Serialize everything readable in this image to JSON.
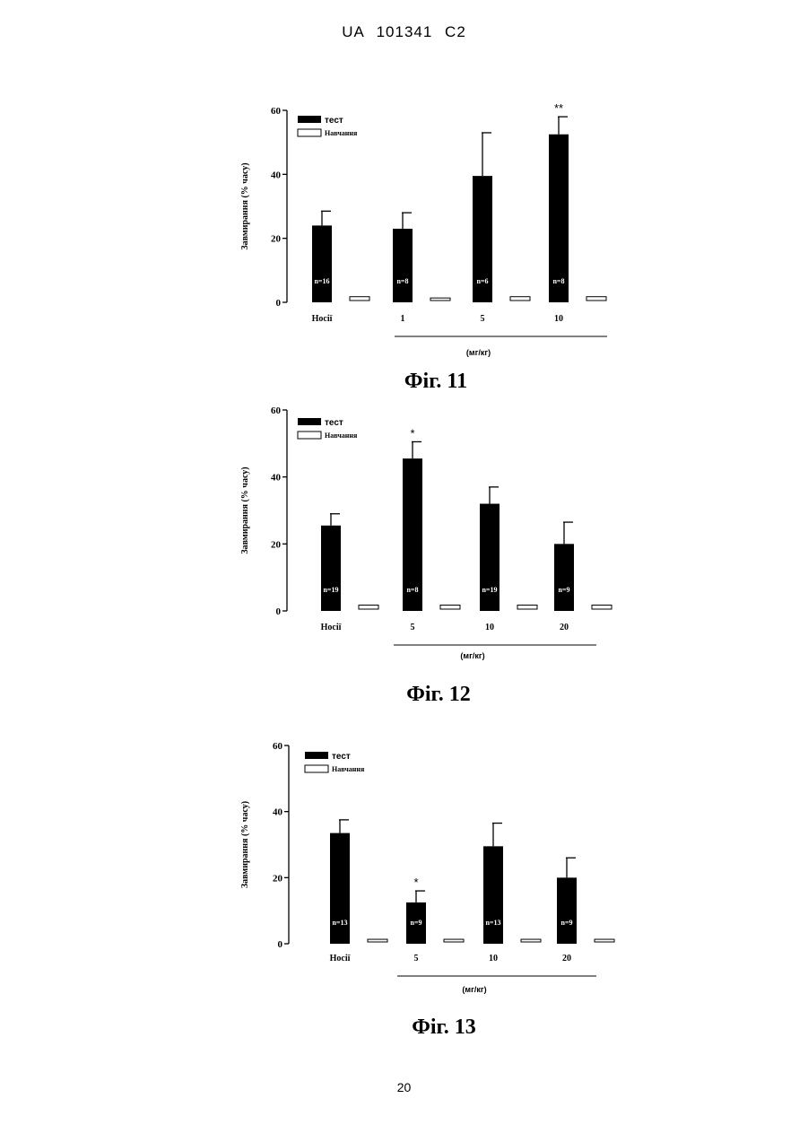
{
  "header": "UA   101341   C2",
  "page_number": "20",
  "chart_data": [
    {
      "type": "bar",
      "caption": "Фіг. 11",
      "ylabel": "Завмирання (% часу)",
      "ylim": [
        0,
        60
      ],
      "yticks": [
        "0",
        "20",
        "40",
        "60"
      ],
      "categories": [
        "Носії",
        "1",
        "5",
        "10"
      ],
      "unit_label": "(мг/кг)",
      "series": [
        {
          "name": "тест",
          "values": [
            24,
            23,
            39.5,
            52.5
          ],
          "errors": [
            4.5,
            5,
            13.5,
            5.5
          ],
          "n_labels": [
            "n=16",
            "n=8",
            "n=6",
            "n=8"
          ],
          "significance": [
            "",
            "",
            "",
            "**"
          ]
        },
        {
          "name": "Навчання",
          "values": [
            1.2,
            0.8,
            1.2,
            1.2
          ]
        }
      ]
    },
    {
      "type": "bar",
      "caption": "Фіг. 12",
      "ylabel": "Завмирання (% часу)",
      "ylim": [
        0,
        60
      ],
      "yticks": [
        "0",
        "20",
        "40",
        "60"
      ],
      "categories": [
        "Носії",
        "5",
        "10",
        "20"
      ],
      "unit_label": "(мг/кг)",
      "series": [
        {
          "name": "тест",
          "values": [
            25.5,
            45.5,
            32,
            20
          ],
          "errors": [
            3.5,
            5,
            5,
            6.5
          ],
          "n_labels": [
            "n=19",
            "n=8",
            "n=19",
            "n=9"
          ],
          "significance": [
            "",
            "*",
            "",
            ""
          ]
        },
        {
          "name": "Навчання",
          "values": [
            1.2,
            1.2,
            1.2,
            1.2
          ]
        }
      ]
    },
    {
      "type": "bar",
      "caption": "Фіг. 13",
      "ylabel": "Завмирання (% часу)",
      "ylim": [
        0,
        60
      ],
      "yticks": [
        "0",
        "20",
        "40",
        "60"
      ],
      "categories": [
        "Носії",
        "5",
        "10",
        "20"
      ],
      "unit_label": "(мг/кг)",
      "series": [
        {
          "name": "тест",
          "values": [
            33.5,
            12.5,
            29.5,
            20
          ],
          "errors": [
            4,
            3.5,
            7,
            6
          ],
          "n_labels": [
            "n=13",
            "n=9",
            "n=13",
            "n=9"
          ],
          "significance": [
            "",
            "*",
            "",
            ""
          ]
        },
        {
          "name": "Навчання",
          "values": [
            0.8,
            0.8,
            0.8,
            0.8
          ]
        }
      ]
    }
  ]
}
